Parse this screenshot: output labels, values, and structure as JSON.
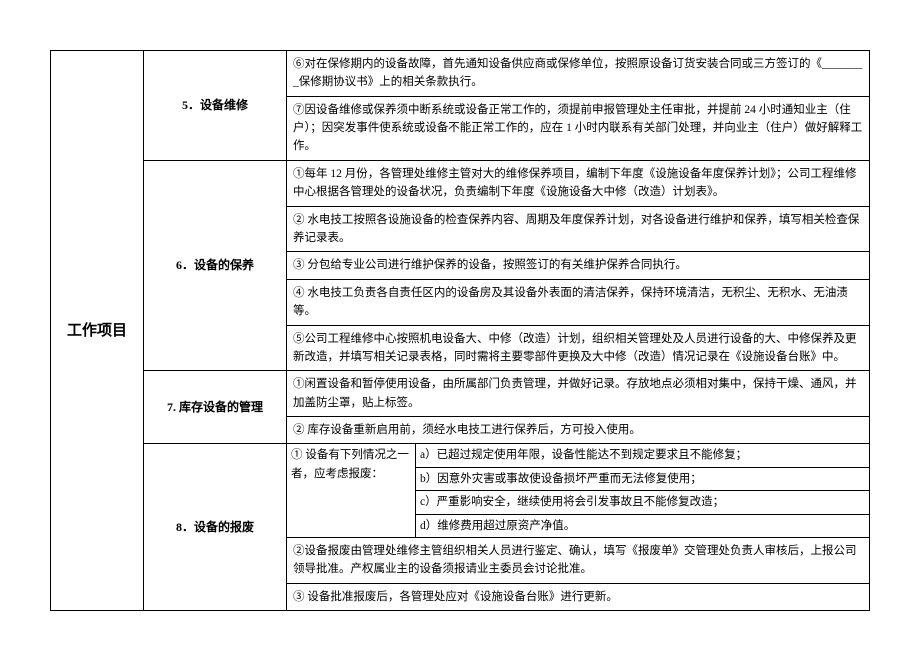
{
  "rowHeader": "工作项目",
  "sections": [
    {
      "title": "5．设备维修",
      "rows": [
        "⑥对在保修期内的设备故障，首先通知设备供应商或保修单位，按照原设备订货安装合同或三方签订的《________保修期协议书》上的相关条款执行。",
        "⑦因设备维修或保养须中断系统或设备正常工作的，须提前申报管理处主任审批，并提前 24 小时通知业主（住户）；因突发事件使系统或设备不能正常工作的，应在 1 小时内联系有关部门处理，并向业主（住户）做好解释工作。"
      ]
    },
    {
      "title": "6．设备的保养",
      "rows": [
        "①每年 12 月份，各管理处维修主管对大的维修保养项目，编制下年度《设施设备年度保养计划》；公司工程维修中心根据各管理处的设备状况，负责编制下年度《设施设备大中修（改造）计划表》。",
        "② 水电技工按照各设施设备的检查保养内容、周期及年度保养计划，对各设备进行维护和保养，填写相关检查保养记录表。",
        "③ 分包给专业公司进行维护保养的设备，按照签订的有关维护保养合同执行。",
        "④ 水电技工负责各自责任区内的设备房及其设备外表面的清洁保养，保持环境清洁，无积尘、无积水、无油渍等。",
        "⑤公司工程维修中心按照机电设备大、中修（改造）计划，组织相关管理处及人员进行设备的大、中修保养及更新改造，并填写相关记录表格，同时需将主要零部件更换及大中修（改造）情况记录在《设施设备台账》中。"
      ]
    },
    {
      "title": "7. 库存设备的管理",
      "rows": [
        "①闲置设备和暂停使用设备，由所属部门负责管理，并做好记录。存放地点必须相对集中，保持干燥、通风，并加盖防尘罩，贴上标签。",
        "② 库存设备重新启用前，须经水电技工进行保养后，方可投入使用。"
      ]
    },
    {
      "title": "8．设备的报废",
      "subLeft": "① 设备有下列情况之一者，应考虑报废：",
      "subItems": [
        "a）已超过规定使用年限，设备性能达不到规定要求且不能修复；",
        "b）因意外灾害或事故使设备损坏严重而无法修复使用；",
        "c）严重影响安全，继续使用将会引发事故且不能修复改造；",
        "d）维修费用超过原资产净值。"
      ],
      "rows": [
        "②设备报废由管理处维修主管组织相关人员进行鉴定、确认，填写《报废单》交管理处负责人审核后，上报公司领导批准。产权属业主的设备须报请业主委员会讨论批准。",
        "③ 设备批准报废后，各管理处应对《设施设备台账》进行更新。"
      ]
    }
  ]
}
